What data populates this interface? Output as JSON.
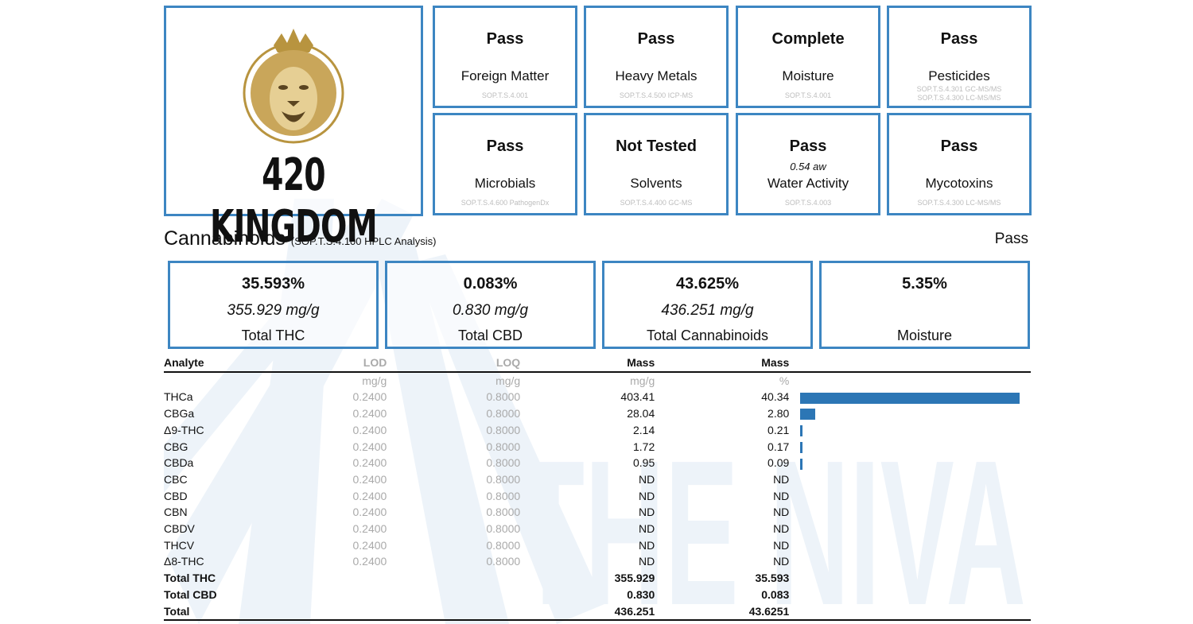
{
  "brand": {
    "name": "420 KINGDOM",
    "watermark": "THE NIVA"
  },
  "tiles": [
    {
      "status": "Pass",
      "name": "Foreign Matter",
      "extra": "",
      "method": [
        "SOP.T.S.4.001"
      ]
    },
    {
      "status": "Pass",
      "name": "Heavy Metals",
      "extra": "",
      "method": [
        "SOP.T.S.4.500 ICP-MS"
      ]
    },
    {
      "status": "Complete",
      "name": "Moisture",
      "extra": "",
      "method": [
        "SOP.T.S.4.001"
      ]
    },
    {
      "status": "Pass",
      "name": "Pesticides",
      "extra": "",
      "method": [
        "SOP.T.S.4.301 GC-MS/MS",
        "SOP.T.S.4.300 LC-MS/MS"
      ]
    },
    {
      "status": "Pass",
      "name": "Microbials",
      "extra": "",
      "method": [
        "SOP.T.S.4.600 PathogenDx"
      ]
    },
    {
      "status": "Not Tested",
      "name": "Solvents",
      "extra": "",
      "method": [
        "SOP.T.S.4.400 GC-MS"
      ]
    },
    {
      "status": "Pass",
      "name": "Water Activity",
      "extra": "0.54 aw",
      "method": [
        "SOP.T.S.4.003"
      ]
    },
    {
      "status": "Pass",
      "name": "Mycotoxins",
      "extra": "",
      "method": [
        "SOP.T.S.4.300 LC-MS/MS"
      ]
    }
  ],
  "cannabinoids": {
    "title": "Cannabinoids",
    "method": "(SOP.T.S.4.100 HPLC Analysis)",
    "result": "Pass",
    "summary": [
      {
        "pct": "35.593%",
        "mg": "355.929 mg/g",
        "label": "Total THC"
      },
      {
        "pct": "0.083%",
        "mg": "0.830 mg/g",
        "label": "Total CBD"
      },
      {
        "pct": "43.625%",
        "mg": "436.251 mg/g",
        "label": "Total Cannabinoids"
      },
      {
        "pct": "5.35%",
        "mg": "",
        "label": "Moisture"
      }
    ],
    "headers": [
      "Analyte",
      "LOD",
      "LOQ",
      "Mass",
      "Mass"
    ],
    "units": [
      "",
      "mg/g",
      "mg/g",
      "mg/g",
      "%"
    ],
    "rows": [
      {
        "analyte": "THCa",
        "lod": "0.2400",
        "loq": "0.8000",
        "mg": "403.41",
        "pct": "40.34",
        "bar": 40.34
      },
      {
        "analyte": "CBGa",
        "lod": "0.2400",
        "loq": "0.8000",
        "mg": "28.04",
        "pct": "2.80",
        "bar": 2.8
      },
      {
        "analyte": "Δ9-THC",
        "lod": "0.2400",
        "loq": "0.8000",
        "mg": "2.14",
        "pct": "0.21",
        "bar": 0.21
      },
      {
        "analyte": "CBG",
        "lod": "0.2400",
        "loq": "0.8000",
        "mg": "1.72",
        "pct": "0.17",
        "bar": 0.17
      },
      {
        "analyte": "CBDa",
        "lod": "0.2400",
        "loq": "0.8000",
        "mg": "0.95",
        "pct": "0.09",
        "bar": 0.09
      },
      {
        "analyte": "CBC",
        "lod": "0.2400",
        "loq": "0.8000",
        "mg": "ND",
        "pct": "ND",
        "bar": 0
      },
      {
        "analyte": "CBD",
        "lod": "0.2400",
        "loq": "0.8000",
        "mg": "ND",
        "pct": "ND",
        "bar": 0
      },
      {
        "analyte": "CBN",
        "lod": "0.2400",
        "loq": "0.8000",
        "mg": "ND",
        "pct": "ND",
        "bar": 0
      },
      {
        "analyte": "CBDV",
        "lod": "0.2400",
        "loq": "0.8000",
        "mg": "ND",
        "pct": "ND",
        "bar": 0
      },
      {
        "analyte": "THCV",
        "lod": "0.2400",
        "loq": "0.8000",
        "mg": "ND",
        "pct": "ND",
        "bar": 0
      },
      {
        "analyte": "Δ8-THC",
        "lod": "0.2400",
        "loq": "0.8000",
        "mg": "ND",
        "pct": "ND",
        "bar": 0
      }
    ],
    "totals": [
      {
        "label": "Total THC",
        "mg": "355.929",
        "pct": "35.593"
      },
      {
        "label": "Total CBD",
        "mg": "0.830",
        "pct": "0.083"
      },
      {
        "label": "Total",
        "mg": "436.251",
        "pct": "43.6251"
      }
    ],
    "bar_max": 40.34
  },
  "colors": {
    "border": "#3d86c2",
    "bar": "#2c76b5",
    "logo_gold": "#b8943f"
  }
}
